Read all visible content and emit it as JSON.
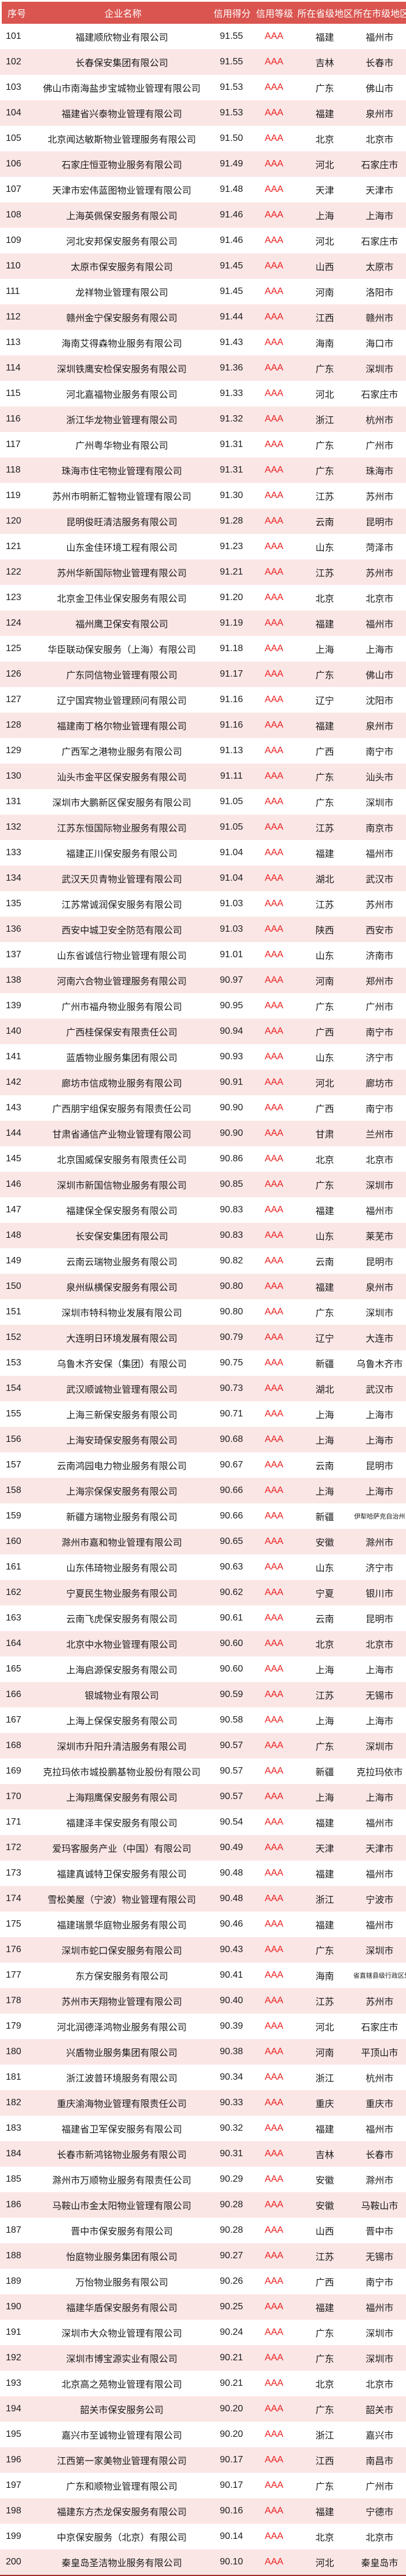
{
  "table": {
    "columns": [
      "序号",
      "企业名称",
      "信用得分",
      "信用等级",
      "所在省级地区",
      "所在市级地区"
    ],
    "header_bg": "#da5550",
    "row_alt_bg": "#fbe6e6",
    "rating_color": "#ed1c1c",
    "bottom_border_color": "#a02c28",
    "rows": [
      {
        "no": "101",
        "name": "福建顺欣物业有限公司",
        "score": "91.55",
        "rating": "AAA",
        "province": "福建",
        "city": "福州市"
      },
      {
        "no": "102",
        "name": "长春保安集团有限公司",
        "score": "91.55",
        "rating": "AAA",
        "province": "吉林",
        "city": "长春市"
      },
      {
        "no": "103",
        "name": "佛山市南海盐步宝城物业管理有限公司",
        "score": "91.53",
        "rating": "AAA",
        "province": "广东",
        "city": "佛山市"
      },
      {
        "no": "104",
        "name": "福建省兴泰物业管理有限公司",
        "score": "91.53",
        "rating": "AAA",
        "province": "福建",
        "city": "泉州市"
      },
      {
        "no": "105",
        "name": "北京闻达敏斯物业管理服务有限公司",
        "score": "91.50",
        "rating": "AAA",
        "province": "北京",
        "city": "北京市"
      },
      {
        "no": "106",
        "name": "石家庄恒亚物业服务有限公司",
        "score": "91.49",
        "rating": "AAA",
        "province": "河北",
        "city": "石家庄市"
      },
      {
        "no": "107",
        "name": "天津市宏伟蓝图物业管理有限公司",
        "score": "91.48",
        "rating": "AAA",
        "province": "天津",
        "city": "天津市"
      },
      {
        "no": "108",
        "name": "上海英佩保安服务有限公司",
        "score": "91.46",
        "rating": "AAA",
        "province": "上海",
        "city": "上海市"
      },
      {
        "no": "109",
        "name": "河北安邦保安服务有限公司",
        "score": "91.46",
        "rating": "AAA",
        "province": "河北",
        "city": "石家庄市"
      },
      {
        "no": "110",
        "name": "太原市保安服务有限公司",
        "score": "91.45",
        "rating": "AAA",
        "province": "山西",
        "city": "太原市"
      },
      {
        "no": "111",
        "name": "龙祥物业管理有限公司",
        "score": "91.45",
        "rating": "AAA",
        "province": "河南",
        "city": "洛阳市"
      },
      {
        "no": "112",
        "name": "赣州金宁保安服务有限公司",
        "score": "91.44",
        "rating": "AAA",
        "province": "江西",
        "city": "赣州市"
      },
      {
        "no": "113",
        "name": "海南艾得森物业服务有限公司",
        "score": "91.43",
        "rating": "AAA",
        "province": "海南",
        "city": "海口市"
      },
      {
        "no": "114",
        "name": "深圳铁鹰安检保安服务有限公司",
        "score": "91.36",
        "rating": "AAA",
        "province": "广东",
        "city": "深圳市"
      },
      {
        "no": "115",
        "name": "河北嘉福物业服务有限公司",
        "score": "91.33",
        "rating": "AAA",
        "province": "河北",
        "city": "石家庄市"
      },
      {
        "no": "116",
        "name": "浙江华龙物业管理有限公司",
        "score": "91.32",
        "rating": "AAA",
        "province": "浙江",
        "city": "杭州市"
      },
      {
        "no": "117",
        "name": "广州粤华物业有限公司",
        "score": "91.31",
        "rating": "AAA",
        "province": "广东",
        "city": "广州市"
      },
      {
        "no": "118",
        "name": "珠海市住宅物业管理有限公司",
        "score": "91.31",
        "rating": "AAA",
        "province": "广东",
        "city": "珠海市"
      },
      {
        "no": "119",
        "name": "苏州市明新汇智物业管理有限公司",
        "score": "91.30",
        "rating": "AAA",
        "province": "江苏",
        "city": "苏州市"
      },
      {
        "no": "120",
        "name": "昆明俊旺清洁服务有限公司",
        "score": "91.28",
        "rating": "AAA",
        "province": "云南",
        "city": "昆明市"
      },
      {
        "no": "121",
        "name": "山东金佳环境工程有限公司",
        "score": "91.23",
        "rating": "AAA",
        "province": "山东",
        "city": "菏泽市"
      },
      {
        "no": "122",
        "name": "苏州华新国际物业管理有限公司",
        "score": "91.21",
        "rating": "AAA",
        "province": "江苏",
        "city": "苏州市"
      },
      {
        "no": "123",
        "name": "北京金卫伟业保安服务有限公司",
        "score": "91.20",
        "rating": "AAA",
        "province": "北京",
        "city": "北京市"
      },
      {
        "no": "124",
        "name": "福州鹰卫保安有限公司",
        "score": "91.19",
        "rating": "AAA",
        "province": "福建",
        "city": "福州市"
      },
      {
        "no": "125",
        "name": "华臣联动保安服务（上海）有限公司",
        "score": "91.18",
        "rating": "AAA",
        "province": "上海",
        "city": "上海市"
      },
      {
        "no": "126",
        "name": "广东同信物业管理有限公司",
        "score": "91.17",
        "rating": "AAA",
        "province": "广东",
        "city": "佛山市"
      },
      {
        "no": "127",
        "name": "辽宁国宾物业管理顾问有限公司",
        "score": "91.16",
        "rating": "AAA",
        "province": "辽宁",
        "city": "沈阳市"
      },
      {
        "no": "128",
        "name": "福建南丁格尔物业管理有限公司",
        "score": "91.16",
        "rating": "AAA",
        "province": "福建",
        "city": "泉州市"
      },
      {
        "no": "129",
        "name": "广西军之港物业服务有限公司",
        "score": "91.13",
        "rating": "AAA",
        "province": "广西",
        "city": "南宁市"
      },
      {
        "no": "130",
        "name": "汕头市金平区保安服务有限公司",
        "score": "91.11",
        "rating": "AAA",
        "province": "广东",
        "city": "汕头市"
      },
      {
        "no": "131",
        "name": "深圳市大鹏新区保安服务有限公司",
        "score": "91.05",
        "rating": "AAA",
        "province": "广东",
        "city": "深圳市"
      },
      {
        "no": "132",
        "name": "江苏东恒国际物业服务有限公司",
        "score": "91.05",
        "rating": "AAA",
        "province": "江苏",
        "city": "南京市"
      },
      {
        "no": "133",
        "name": "福建正川保安服务有限公司",
        "score": "91.04",
        "rating": "AAA",
        "province": "福建",
        "city": "福州市"
      },
      {
        "no": "134",
        "name": "武汉天贝青物业管理有限公司",
        "score": "91.04",
        "rating": "AAA",
        "province": "湖北",
        "city": "武汉市"
      },
      {
        "no": "135",
        "name": "江苏常诚润保安服务有限公司",
        "score": "91.03",
        "rating": "AAA",
        "province": "江苏",
        "city": "苏州市"
      },
      {
        "no": "136",
        "name": "西安中城卫安全防范有限公司",
        "score": "91.03",
        "rating": "AAA",
        "province": "陕西",
        "city": "西安市"
      },
      {
        "no": "137",
        "name": "山东省诚信行物业管理有限公司",
        "score": "91.01",
        "rating": "AAA",
        "province": "山东",
        "city": "济南市"
      },
      {
        "no": "138",
        "name": "河南六合物业管理服务有限公司",
        "score": "90.97",
        "rating": "AAA",
        "province": "河南",
        "city": "郑州市"
      },
      {
        "no": "139",
        "name": "广州市福舟物业服务有限公司",
        "score": "90.95",
        "rating": "AAA",
        "province": "广东",
        "city": "广州市"
      },
      {
        "no": "140",
        "name": "广西桂保保安有限责任公司",
        "score": "90.94",
        "rating": "AAA",
        "province": "广西",
        "city": "南宁市"
      },
      {
        "no": "141",
        "name": "蓝盾物业服务集团有限公司",
        "score": "90.93",
        "rating": "AAA",
        "province": "山东",
        "city": "济宁市"
      },
      {
        "no": "142",
        "name": "廊坊市信成物业服务有限公司",
        "score": "90.91",
        "rating": "AAA",
        "province": "河北",
        "city": "廊坊市"
      },
      {
        "no": "143",
        "name": "广西朋宇组保安服务有限责任公司",
        "score": "90.90",
        "rating": "AAA",
        "province": "广西",
        "city": "南宁市"
      },
      {
        "no": "144",
        "name": "甘肃省通信产业物业管理有限公司",
        "score": "90.90",
        "rating": "AAA",
        "province": "甘肃",
        "city": "兰州市"
      },
      {
        "no": "145",
        "name": "北京国威保安服务有限责任公司",
        "score": "90.86",
        "rating": "AAA",
        "province": "北京",
        "city": "北京市"
      },
      {
        "no": "146",
        "name": "深圳市新国信物业服务有限公司",
        "score": "90.85",
        "rating": "AAA",
        "province": "广东",
        "city": "深圳市"
      },
      {
        "no": "147",
        "name": "福建保全保安服务有限公司",
        "score": "90.83",
        "rating": "AAA",
        "province": "福建",
        "city": "福州市"
      },
      {
        "no": "148",
        "name": "长安保安集团有限公司",
        "score": "90.83",
        "rating": "AAA",
        "province": "山东",
        "city": "莱芜市"
      },
      {
        "no": "149",
        "name": "云南云瑞物业服务有限公司",
        "score": "90.82",
        "rating": "AAA",
        "province": "云南",
        "city": "昆明市"
      },
      {
        "no": "150",
        "name": "泉州纵横保安服务有限公司",
        "score": "90.80",
        "rating": "AAA",
        "province": "福建",
        "city": "泉州市"
      },
      {
        "no": "151",
        "name": "深圳市特科物业发展有限公司",
        "score": "90.80",
        "rating": "AAA",
        "province": "广东",
        "city": "深圳市"
      },
      {
        "no": "152",
        "name": "大连明日环境发展有限公司",
        "score": "90.79",
        "rating": "AAA",
        "province": "辽宁",
        "city": "大连市"
      },
      {
        "no": "153",
        "name": "乌鲁木齐安保（集团）有限公司",
        "score": "90.75",
        "rating": "AAA",
        "province": "新疆",
        "city": "乌鲁木齐市"
      },
      {
        "no": "154",
        "name": "武汉顺诚物业管理有限公司",
        "score": "90.73",
        "rating": "AAA",
        "province": "湖北",
        "city": "武汉市"
      },
      {
        "no": "155",
        "name": "上海三新保安服务有限公司",
        "score": "90.71",
        "rating": "AAA",
        "province": "上海",
        "city": "上海市"
      },
      {
        "no": "156",
        "name": "上海安琦保安服务有限公司",
        "score": "90.68",
        "rating": "AAA",
        "province": "上海",
        "city": "上海市"
      },
      {
        "no": "157",
        "name": "云南鸿园电力物业服务有限公司",
        "score": "90.67",
        "rating": "AAA",
        "province": "云南",
        "city": "昆明市"
      },
      {
        "no": "158",
        "name": "上海宗保保安服务有限公司",
        "score": "90.66",
        "rating": "AAA",
        "province": "上海",
        "city": "上海市"
      },
      {
        "no": "159",
        "name": "新疆方瑞物业服务有限公司",
        "score": "90.66",
        "rating": "AAA",
        "province": "新疆",
        "city": "伊犁哈萨克自治州",
        "city_small": true
      },
      {
        "no": "160",
        "name": "滁州市嘉和物业管理有限公司",
        "score": "90.65",
        "rating": "AAA",
        "province": "安徽",
        "city": "滁州市"
      },
      {
        "no": "161",
        "name": "山东伟琦物业服务有限公司",
        "score": "90.63",
        "rating": "AAA",
        "province": "山东",
        "city": "济宁市"
      },
      {
        "no": "162",
        "name": "宁夏民生物业服务有限公司",
        "score": "90.62",
        "rating": "AAA",
        "province": "宁夏",
        "city": "银川市"
      },
      {
        "no": "163",
        "name": "云南飞虎保安服务有限公司",
        "score": "90.61",
        "rating": "AAA",
        "province": "云南",
        "city": "昆明市"
      },
      {
        "no": "164",
        "name": "北京中水物业管理有限公司",
        "score": "90.60",
        "rating": "AAA",
        "province": "北京",
        "city": "北京市"
      },
      {
        "no": "165",
        "name": "上海启源保安服务有限公司",
        "score": "90.60",
        "rating": "AAA",
        "province": "上海",
        "city": "上海市"
      },
      {
        "no": "166",
        "name": "银城物业有限公司",
        "score": "90.59",
        "rating": "AAA",
        "province": "江苏",
        "city": "无锡市"
      },
      {
        "no": "167",
        "name": "上海上保保安服务有限公司",
        "score": "90.58",
        "rating": "AAA",
        "province": "上海",
        "city": "上海市"
      },
      {
        "no": "168",
        "name": "深圳市升阳升清洁服务有限公司",
        "score": "90.57",
        "rating": "AAA",
        "province": "广东",
        "city": "深圳市"
      },
      {
        "no": "169",
        "name": "克拉玛依市城投鹏基物业股份有限公司",
        "score": "90.57",
        "rating": "AAA",
        "province": "新疆",
        "city": "克拉玛依市"
      },
      {
        "no": "170",
        "name": "上海翔鹰保安服务有限公司",
        "score": "90.57",
        "rating": "AAA",
        "province": "上海",
        "city": "上海市"
      },
      {
        "no": "171",
        "name": "福建泽丰保安服务有限公司",
        "score": "90.54",
        "rating": "AAA",
        "province": "福建",
        "city": "福州市"
      },
      {
        "no": "172",
        "name": "爱玛客服务产业（中国）有限公司",
        "score": "90.49",
        "rating": "AAA",
        "province": "天津",
        "city": "天津市"
      },
      {
        "no": "173",
        "name": "福建真诚特卫保安服务有限公司",
        "score": "90.48",
        "rating": "AAA",
        "province": "福建",
        "city": "福州市"
      },
      {
        "no": "174",
        "name": "雪松美屋（宁波）物业管理有限公司",
        "score": "90.48",
        "rating": "AAA",
        "province": "浙江",
        "city": "宁波市"
      },
      {
        "no": "175",
        "name": "福建瑞景华庭物业服务有限公司",
        "score": "90.46",
        "rating": "AAA",
        "province": "福建",
        "city": "福州市"
      },
      {
        "no": "176",
        "name": "深圳市蛇口保安服务有限公司",
        "score": "90.43",
        "rating": "AAA",
        "province": "广东",
        "city": "深圳市"
      },
      {
        "no": "177",
        "name": "东方保安服务有限公司",
        "score": "90.41",
        "rating": "AAA",
        "province": "海南",
        "city": "省直辖县级行政区划",
        "city_small": true
      },
      {
        "no": "178",
        "name": "苏州市天翔物业管理有限公司",
        "score": "90.40",
        "rating": "AAA",
        "province": "江苏",
        "city": "苏州市"
      },
      {
        "no": "179",
        "name": "河北润德泽鸿物业服务有限公司",
        "score": "90.39",
        "rating": "AAA",
        "province": "河北",
        "city": "石家庄市"
      },
      {
        "no": "180",
        "name": "兴盾物业服务集团有限公司",
        "score": "90.38",
        "rating": "AAA",
        "province": "河南",
        "city": "平顶山市"
      },
      {
        "no": "181",
        "name": "浙江波普环境服务有限公司",
        "score": "90.34",
        "rating": "AAA",
        "province": "浙江",
        "city": "杭州市"
      },
      {
        "no": "182",
        "name": "重庆渝海物业管理有限责任公司",
        "score": "90.33",
        "rating": "AAA",
        "province": "重庆",
        "city": "重庆市"
      },
      {
        "no": "183",
        "name": "福建省卫军保安服务有限公司",
        "score": "90.32",
        "rating": "AAA",
        "province": "福建",
        "city": "福州市"
      },
      {
        "no": "184",
        "name": "长春市新鸿铭物业服务有限公司",
        "score": "90.31",
        "rating": "AAA",
        "province": "吉林",
        "city": "长春市"
      },
      {
        "no": "185",
        "name": "滁州市万顺物业服务有限责任公司",
        "score": "90.29",
        "rating": "AAA",
        "province": "安徽",
        "city": "滁州市"
      },
      {
        "no": "186",
        "name": "马鞍山市金太阳物业管理有限公司",
        "score": "90.28",
        "rating": "AAA",
        "province": "安徽",
        "city": "马鞍山市"
      },
      {
        "no": "187",
        "name": "晋中市保安服务有限公司",
        "score": "90.28",
        "rating": "AAA",
        "province": "山西",
        "city": "晋中市"
      },
      {
        "no": "188",
        "name": "怡庭物业服务集团有限公司",
        "score": "90.27",
        "rating": "AAA",
        "province": "江苏",
        "city": "无锡市"
      },
      {
        "no": "189",
        "name": "万怡物业服务有限公司",
        "score": "90.26",
        "rating": "AAA",
        "province": "广西",
        "city": "南宁市"
      },
      {
        "no": "190",
        "name": "福建华盾保安服务有限公司",
        "score": "90.25",
        "rating": "AAA",
        "province": "福建",
        "city": "福州市"
      },
      {
        "no": "191",
        "name": "深圳市大众物业管理有限公司",
        "score": "90.24",
        "rating": "AAA",
        "province": "广东",
        "city": "深圳市"
      },
      {
        "no": "192",
        "name": "深圳市博宝源实业有限公司",
        "score": "90.21",
        "rating": "AAA",
        "province": "广东",
        "city": "深圳市"
      },
      {
        "no": "193",
        "name": "北京高之苑物业管理有限公司",
        "score": "90.21",
        "rating": "AAA",
        "province": "北京",
        "city": "北京市"
      },
      {
        "no": "194",
        "name": "韶关市保安服务公司",
        "score": "90.20",
        "rating": "AAA",
        "province": "广东",
        "city": "韶关市"
      },
      {
        "no": "195",
        "name": "嘉兴市至诚物业管理有限公司",
        "score": "90.20",
        "rating": "AAA",
        "province": "浙江",
        "city": "嘉兴市"
      },
      {
        "no": "196",
        "name": "江西第一家美物业管理有限公司",
        "score": "90.17",
        "rating": "AAA",
        "province": "江西",
        "city": "南昌市"
      },
      {
        "no": "197",
        "name": "广东和顺物业管理有限公司",
        "score": "90.17",
        "rating": "AAA",
        "province": "广东",
        "city": "广州市"
      },
      {
        "no": "198",
        "name": "福建东方杰龙保安服务有限公司",
        "score": "90.16",
        "rating": "AAA",
        "province": "福建",
        "city": "宁德市"
      },
      {
        "no": "199",
        "name": "中京保安服务（北京）有限公司",
        "score": "90.14",
        "rating": "AAA",
        "province": "北京",
        "city": "北京市"
      },
      {
        "no": "200",
        "name": "秦皇岛圣洁物业服务有限公司",
        "score": "90.10",
        "rating": "AAA",
        "province": "河北",
        "city": "秦皇岛市"
      }
    ]
  }
}
